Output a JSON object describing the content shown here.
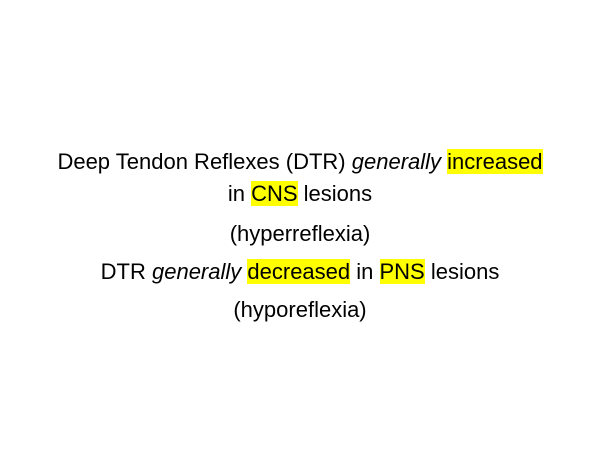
{
  "slide": {
    "line1": {
      "lead": "Deep Tendon Reflexes (DTR) ",
      "emphasis": "generally",
      "space": " ",
      "highlight": "increased"
    },
    "line2": {
      "lead": "in ",
      "highlight": "CNS",
      "tail": " lesions"
    },
    "line3": {
      "text": "(hyperreflexia)"
    },
    "line4": {
      "lead": "DTR ",
      "emphasis": "generally",
      "space": " ",
      "highlight1": "decreased",
      "middle": " in ",
      "highlight2": "PNS",
      "tail": " lesions"
    },
    "line5": {
      "text": "(hyporeflexia)"
    }
  },
  "colors": {
    "highlight": "#ffff00",
    "text": "#000000",
    "background": "#ffffff"
  }
}
